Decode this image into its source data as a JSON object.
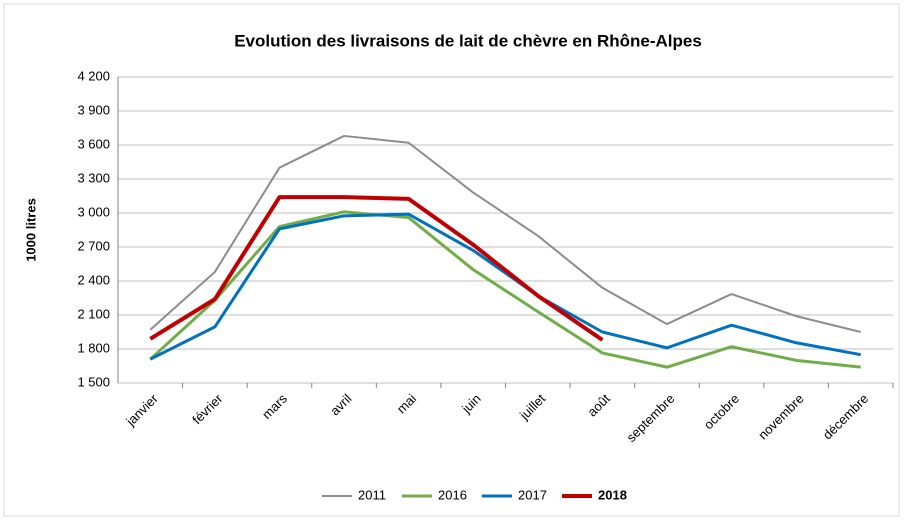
{
  "chart_data": {
    "type": "line",
    "title": "Evolution des livraisons de lait de chèvre en Rhône-Alpes",
    "y_label": "1000 litres",
    "categories": [
      "janvier",
      "février",
      "mars",
      "avril",
      "mai",
      "juin",
      "juillet",
      "août",
      "septembre",
      "octobre",
      "novembre",
      "décembre"
    ],
    "series": [
      {
        "name": "2011",
        "color": "#8c8c8c",
        "values": [
          1970,
          2480,
          3400,
          3680,
          3620,
          3180,
          2800,
          2340,
          2020,
          2285,
          2090,
          1950
        ]
      },
      {
        "name": "2016",
        "color": "#70ad47",
        "values": [
          1710,
          2230,
          2880,
          3010,
          2960,
          2500,
          2130,
          1765,
          1640,
          1820,
          1700,
          1640
        ]
      },
      {
        "name": "2017",
        "color": "#0070c0",
        "values": [
          1710,
          1995,
          2860,
          2975,
          2990,
          2670,
          2270,
          1950,
          1810,
          2010,
          1855,
          1750
        ]
      },
      {
        "name": "2018",
        "color": "#c00000",
        "bold": true,
        "values": [
          1890,
          2240,
          3140,
          3140,
          3125,
          2720,
          2270,
          1880,
          null,
          null,
          null,
          null
        ]
      }
    ],
    "ylim": [
      1500,
      4200
    ],
    "yticks": [
      {
        "value": 1500,
        "label": "1 500"
      },
      {
        "value": 1800,
        "label": "1 800"
      },
      {
        "value": 2100,
        "label": "2 100"
      },
      {
        "value": 2400,
        "label": "2 400"
      },
      {
        "value": 2700,
        "label": "2 700"
      },
      {
        "value": 3000,
        "label": "3 000"
      },
      {
        "value": 3300,
        "label": "3 300"
      },
      {
        "value": 3600,
        "label": "3 600"
      },
      {
        "value": 3900,
        "label": "3 900"
      },
      {
        "value": 4200,
        "label": "4 200"
      }
    ],
    "grid": true
  }
}
